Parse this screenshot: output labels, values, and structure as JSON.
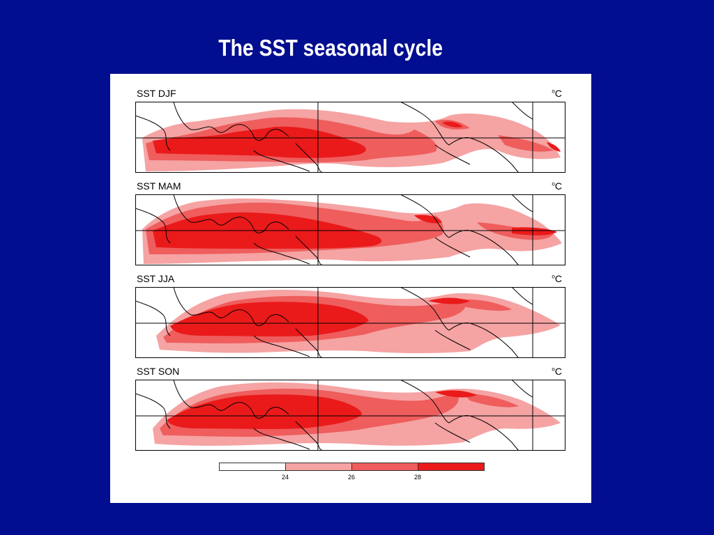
{
  "slide": {
    "title": "The SST seasonal cycle"
  },
  "panels": [
    {
      "title": "SST DJF",
      "units_degree": "o",
      "units": "C"
    },
    {
      "title": "SST MAM",
      "units_degree": "o",
      "units": "C"
    },
    {
      "title": "SST JJA",
      "units_degree": "o",
      "units": "C"
    },
    {
      "title": "SST SON",
      "units_degree": "o",
      "units": "C"
    }
  ],
  "colorbar": {
    "bins": [
      {
        "range": "< 24",
        "color": "#ffffff"
      },
      {
        "range": "24-26",
        "color": "#f5a3a3"
      },
      {
        "range": "26-28",
        "color": "#ef5d5d"
      },
      {
        "range": "> 28",
        "color": "#ea1a1a"
      }
    ],
    "tick_labels": [
      "24",
      "26",
      "28"
    ]
  },
  "colors": {
    "background": "#000e8f",
    "level_1": "#f5a3a3",
    "level_2": "#ef5d5d",
    "level_3": "#ea1a1a"
  }
}
